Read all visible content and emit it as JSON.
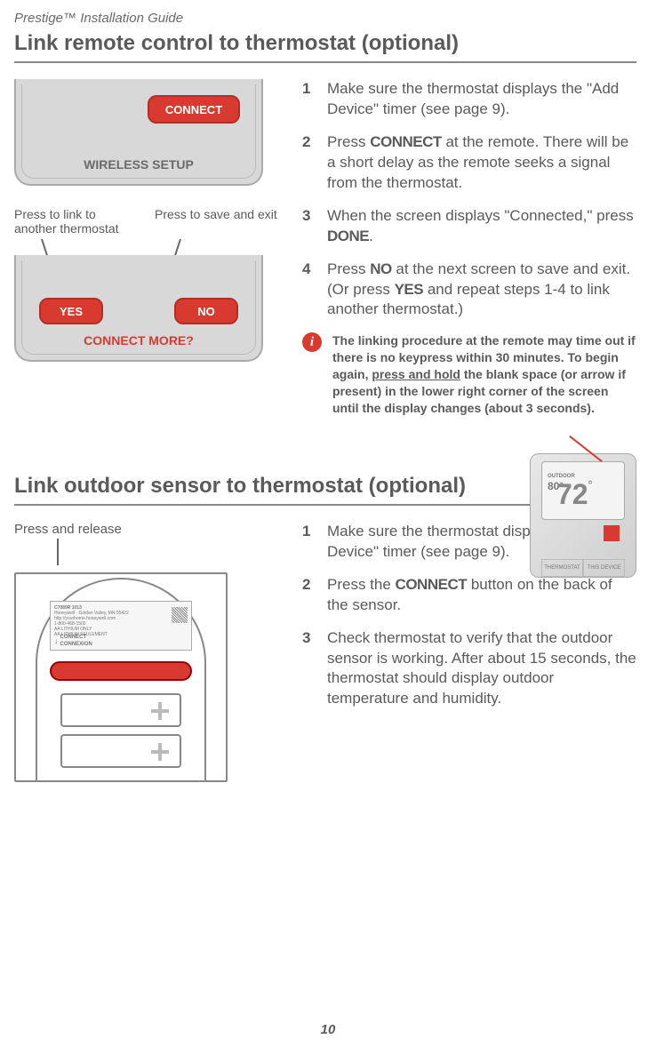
{
  "header": "Prestige™ Installation Guide",
  "page_number": "10",
  "colors": {
    "accent_red": "#d93a2f",
    "text_gray": "#5a5a5a",
    "panel_bg": "#d8d8d8"
  },
  "section1": {
    "title": "Link remote control to thermostat (optional)",
    "panel1": {
      "button": "CONNECT",
      "label": "WIRELESS SETUP"
    },
    "callout_left": "Press to link to another thermostat",
    "callout_right": "Press to save and exit",
    "panel2": {
      "yes": "YES",
      "no": "NO",
      "label": "CONNECT MORE?"
    },
    "steps": [
      {
        "pre": "Make sure the thermostat displays the \"Add Device\" timer (see page 9)."
      },
      {
        "pre": "Press ",
        "kw": "CONNECT",
        "post": " at the remote. There will be a short delay as the remote seeks a signal from the thermostat."
      },
      {
        "pre": "When the screen displays \"Connected,\" press ",
        "kw": "DONE",
        "post": "."
      },
      {
        "pre": "Press ",
        "kw": "NO",
        "mid": " at the next screen to save and exit. (Or press ",
        "kw2": "YES",
        "post": " and repeat steps 1-4 to link another thermostat.)"
      }
    ],
    "info": "The linking procedure at the remote may time out if there is no keypress within 30 minutes. To begin again, press and hold the blank space (or arrow if present) in the lower right corner of the screen until the display changes (about 3 seconds).",
    "info_underline": "press and hold",
    "thermostat_preview": {
      "outdoor": "80",
      "indoor": "72"
    }
  },
  "section2": {
    "title": "Link outdoor sensor to thermostat (optional)",
    "press_release": "Press and release",
    "sensor_label": {
      "model": "C7089R 1013",
      "lines": "Honeywell · Golden Valley, MN 55422\nhttp://yourhome.honeywell.com\n1-800-468-1502\nAA LITHIUM ONLY\nAA LITHIUM SEULEMENT",
      "connect": "CONNECT\nCONNEXION"
    },
    "steps": [
      {
        "pre": "Make sure the thermostat displays the \"Add Device\" timer (see page 9)."
      },
      {
        "pre": "Press the ",
        "kw": "CONNECT",
        "post": " button on the back of the sensor."
      },
      {
        "pre": "Check thermostat to verify that the outdoor sensor is working. After about 15 seconds, the thermostat should display outdoor temperature and humidity."
      }
    ]
  }
}
